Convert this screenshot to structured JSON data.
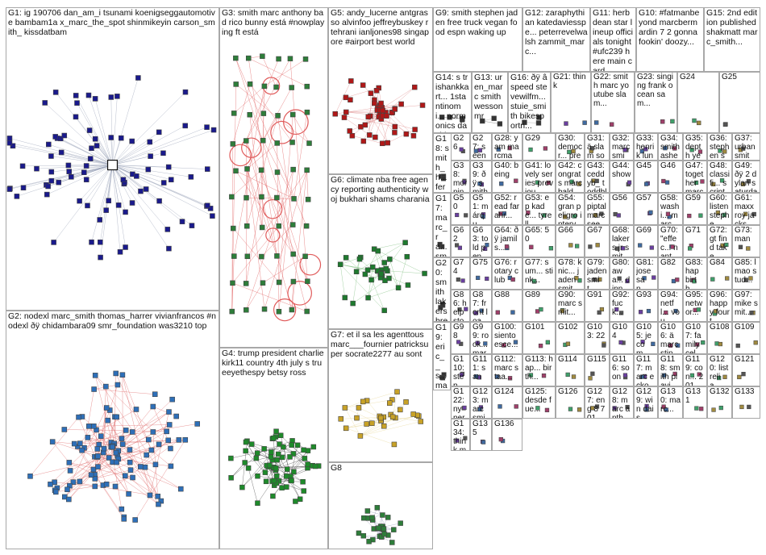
{
  "title": "",
  "groups": [
    {
      "id": "G1",
      "label": "G1: ig 190706 dan_am_i tsunami koenigseggautomotive bambam1a x_marc_the_spot shinmikeyin carson_smith_ kissdatbam",
      "color": "#1a1a8c",
      "edge": "#9aa3b8",
      "nodes": 90,
      "style": "hub"
    },
    {
      "id": "G2",
      "label": "G2: nodexl marc_smith thomas_harrer vivianfrancos #nodexl ðÿ chidambara09 smr_foundation was3210 top",
      "color": "#2e6fb8",
      "edge": "#e06b6b",
      "nodes": 110,
      "style": "cluster"
    },
    {
      "id": "G3",
      "label": "G3: smith marc anthony bad rico bunny está #nowplaying ft está",
      "color": "#2e7d3a",
      "edge": "#e05a5a",
      "nodes": 60,
      "style": "grid"
    },
    {
      "id": "G4",
      "label": "G4: trump president charliekirk11 country 4th july s trueeyethespy betsy ross",
      "color": "#1e8a2a",
      "edge": "#444",
      "nodes": 70,
      "style": "cluster"
    },
    {
      "id": "G5",
      "label": "G5: andy_lucerne antgrasso alvinfoo jeffreybuskey rtehrani ianljones98 singapore #airport best world",
      "color": "#b01818",
      "edge": "#d88",
      "nodes": 50,
      "style": "cluster"
    },
    {
      "id": "G6",
      "label": "G6: climate nba free agency reporting authenticity woj bukhari shams charania",
      "color": "#1e7a2e",
      "edge": "#7fbf7f",
      "nodes": 35,
      "style": "cluster"
    },
    {
      "id": "G7",
      "label": "G7: et il sa les agenttous marc___fournier patricksuper socrate2277 au sont",
      "color": "#c8a227",
      "edge": "#e8d89a",
      "nodes": 30,
      "style": "cluster"
    },
    {
      "id": "G8",
      "label": "G8",
      "color": "#2e7d3a",
      "edge": "#99b",
      "nodes": 28,
      "style": "cluster"
    },
    {
      "id": "G9",
      "label": "G9: smith stephen jaden free truck vegan food espn waking up",
      "color": "#333",
      "edge": "#999",
      "nodes": 0,
      "style": "none"
    },
    {
      "id": "G10",
      "label": "G10: #fatmanbeyond marcbermardin 7 2 gonna fookin' doozy...",
      "color": "#333",
      "edge": "#999",
      "nodes": 0,
      "style": "none"
    },
    {
      "id": "G11",
      "label": "G11: herb dean star lineup officials tonight #ufc239 here main card",
      "color": "#333",
      "edge": "#999",
      "nodes": 0,
      "style": "none"
    },
    {
      "id": "G12",
      "label": "G12: zaraphythian katedaviesspe... peterrevelwalsh zammit_marc...",
      "color": "#333",
      "edge": "#999",
      "nodes": 0,
      "style": "none"
    },
    {
      "id": "G13",
      "label": "G13: uren_marc smith wesson mr",
      "color": "#333",
      "edge": "#999",
      "nodes": 3,
      "style": "few"
    },
    {
      "id": "G14",
      "label": "G14: s trishankkart... 1stantinomi... normonics davidsarac...",
      "color": "#333",
      "edge": "#999",
      "nodes": 4,
      "style": "few"
    },
    {
      "id": "G15",
      "label": "G15: 2nd edition published shakmatt marc_smith...",
      "color": "#333",
      "edge": "#999",
      "nodes": 0,
      "style": "none"
    },
    {
      "id": "G16",
      "label": "G16: ðÿ â speed stevewilfm... stuie_smith bikesportn...",
      "color": "#333",
      "edge": "#999",
      "nodes": 3,
      "style": "few"
    },
    {
      "id": "G17",
      "label": "G17: marc_ra... smith",
      "color": "#333",
      "edge": "#999",
      "nodes": 2,
      "style": "few"
    },
    {
      "id": "G18",
      "label": "G18: smith_h... fernand... tabataa... fernand...",
      "color": "#333",
      "edge": "#999",
      "nodes": 3,
      "style": "few"
    },
    {
      "id": "G19",
      "label": "G19: eric__s... marc team kyle...",
      "color": "#333",
      "edge": "#999",
      "nodes": 3,
      "style": "few"
    },
    {
      "id": "G20",
      "label": "G20: smith lakers breaking jr agreed sign...",
      "color": "#333",
      "edge": "#999",
      "nodes": 3,
      "style": "few"
    }
  ],
  "small_labels": [
    "G21: think",
    "G22: smith marc youtube slam...",
    "G23: singing frank ocean sam...",
    "G24",
    "G25",
    "G26",
    "G27: seen fubar carl cox",
    "G28: yam marcmar... marc bike smith",
    "G29",
    "G30: democr... preside... campai...",
    "G31: ä slam souveni... des...",
    "G32: marcsmit... marc smith...",
    "G33: henrik lundqvist sees...",
    "G34: smith ashes dom...",
    "G35: depth year davidm...",
    "G36: stephen smith â ago...",
    "G37: urban smith's zach...",
    "G38: morning good 33rd...",
    "G39: ðÿ smith blessi... ðÿ field...",
    "G40: being",
    "G41: lovely series previou...",
    "G42: congrats marc baldo...",
    "G43: ceddyb_ toddble... dmillert...",
    "G44: show",
    "G45",
    "G46",
    "G47: together marc staal...",
    "G48: classifi... script automa...",
    "G49: ðÿ 2 dylan saturday 29th...",
    "G50",
    "G51: márqu... estadí...",
    "G52: read farahr...",
    "G53: ep kade... tyrell...",
    "G54: gran peligro interv...",
    "G55: piptal marc see",
    "G56",
    "G57",
    "G58: washi... marc...",
    "G59",
    "G60: listen stephe...",
    "G61: maxx roy jacks...",
    "G62",
    "G63: told penc... cos...",
    "G64: ðÿ jamils...",
    "G65: 50",
    "G66",
    "G67",
    "G68: lakers jr smith...",
    "G69",
    "G70: \"effec... nante... pour...",
    "G71",
    "G72: gt find take...",
    "G73: man",
    "G74",
    "G75",
    "G76: rotary club",
    "G77: sum... stink...",
    "G78: knic... jaden smit...",
    "G79: jaden smit...",
    "G80: awa... dinn...",
    "G81: jose san...",
    "G82",
    "G83: hap birth...",
    "G84",
    "G85: lmao stud...",
    "G86: help stor...",
    "G87: front load...",
    "G88",
    "G89",
    "G90: marc smit...",
    "G91",
    "G92: fuck...",
    "G93",
    "G94: netfl... vou...",
    "G95: networ...",
    "G96: happy fourt...",
    "G97: mike smit...",
    "G98",
    "G99: rook... marc...",
    "G100: siento esce...",
    "G101",
    "G102",
    "G103: 22",
    "G104",
    "G105: je com...",
    "G106: ä marc stink...",
    "G107: family cele...",
    "G108",
    "G109",
    "G110: step... smit...",
    "G111: san",
    "G112: marc staa...",
    "G113: hap... birth...",
    "G114",
    "G115",
    "G116: soon",
    "G117: marc ecko...",
    "G118: smith playi...",
    "G119: con... 201...",
    "G120: list relia...",
    "G121",
    "G122: ny per",
    "G123: marc smit...",
    "G124",
    "G125: desde fue...",
    "G126",
    "G127: eng 8 7 01...",
    "G128: marc anth...",
    "G129: win dais...",
    "G130: marc...",
    "G131",
    "G132",
    "G133",
    "G134: think mor...",
    "G135",
    "G136"
  ]
}
